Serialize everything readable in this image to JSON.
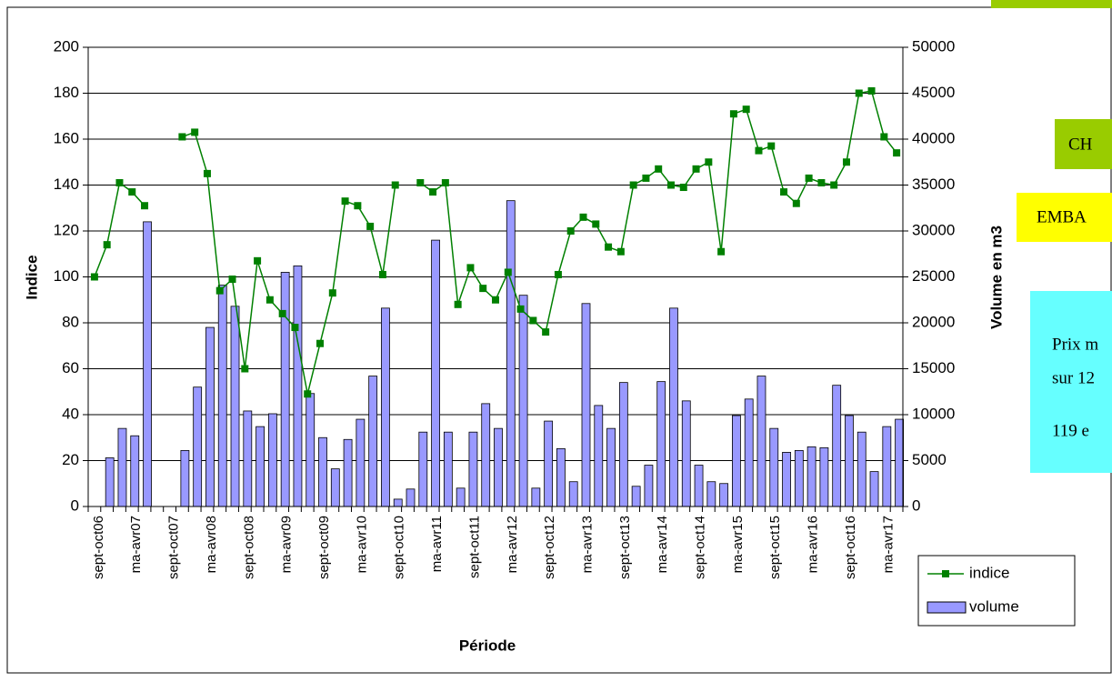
{
  "chart_data": {
    "type": "combo",
    "xlabel": "Période",
    "ylabel": "Indice",
    "y2label": "Volume en m3",
    "categories": [
      "sept-oct06",
      null,
      null,
      "ma-avr07",
      null,
      null,
      "sept-oct07",
      null,
      null,
      "ma-avr08",
      null,
      null,
      "sept-oct08",
      null,
      null,
      "ma-avr09",
      null,
      null,
      "sept-oct09",
      null,
      null,
      "ma-avr10",
      null,
      null,
      "sept-oct10",
      null,
      null,
      "ma-avr11",
      null,
      null,
      "sept-oct11",
      null,
      null,
      "ma-avr12",
      null,
      null,
      "sept-oct12",
      null,
      null,
      "ma-avr13",
      null,
      null,
      "sept-oct13",
      null,
      null,
      "ma-avr14",
      null,
      null,
      "sept-oct14",
      null,
      null,
      "ma-avr15",
      null,
      null,
      "sept-oct15",
      null,
      null,
      "ma-avr16",
      null,
      null,
      "sept-oct16",
      null,
      null,
      "ma-avr17",
      null
    ],
    "series": [
      {
        "name": "indice",
        "type": "line",
        "color": "#008000",
        "values": [
          100,
          114,
          141,
          137,
          131,
          null,
          null,
          161,
          163,
          145,
          94,
          99,
          60,
          107,
          90,
          84,
          78,
          49,
          71,
          93,
          133,
          131,
          122,
          101,
          140,
          null,
          141,
          137,
          141,
          88,
          104,
          95,
          90,
          102,
          86,
          81,
          76,
          101,
          120,
          126,
          123,
          113,
          111,
          140,
          143,
          147,
          140,
          139,
          147,
          150,
          111,
          171,
          173,
          155,
          157,
          137,
          132,
          143,
          141,
          140,
          150,
          180,
          181,
          161,
          154
        ]
      },
      {
        "name": "volume",
        "type": "bar",
        "axis": "y2",
        "color": "#9999ff",
        "values": [
          null,
          5300,
          8500,
          7700,
          31000,
          null,
          null,
          6100,
          13000,
          19500,
          24100,
          21800,
          10400,
          8700,
          10100,
          25500,
          26200,
          12300,
          7500,
          4100,
          7300,
          9500,
          14200,
          21600,
          800,
          1900,
          8100,
          29000,
          8100,
          2000,
          8100,
          11200,
          8500,
          33300,
          23000,
          2000,
          9300,
          6300,
          2700,
          22100,
          11000,
          8500,
          13500,
          2200,
          4500,
          13600,
          21600,
          11500,
          4500,
          2700,
          2500,
          9900,
          11700,
          14200,
          8500,
          5900,
          6100,
          6500,
          6400,
          13200,
          9900,
          8100,
          3800,
          8700,
          9500
        ]
      }
    ],
    "ylim": [
      0,
      200
    ],
    "yticks": [
      0,
      20,
      40,
      60,
      80,
      100,
      120,
      140,
      160,
      180,
      200
    ],
    "y2lim": [
      0,
      50000
    ],
    "y2ticks": [
      0,
      5000,
      10000,
      15000,
      20000,
      25000,
      30000,
      35000,
      40000,
      45000,
      50000
    ],
    "grid": true,
    "legend": "bottom-right",
    "annotations": [
      "CH",
      "EMBA",
      "Prix m",
      "sur 12",
      "119 e"
    ]
  }
}
